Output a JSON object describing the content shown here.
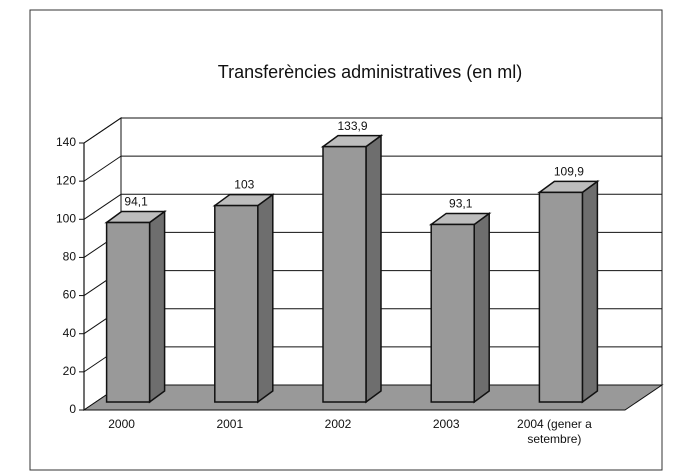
{
  "chart_data": {
    "type": "bar3d",
    "title": "Transferències administratives (en ml)",
    "categories": [
      "2000",
      "2001",
      "2002",
      "2003",
      "2004 (gener a setembre)"
    ],
    "values": [
      94.1,
      103,
      133.9,
      93.1,
      109.9
    ],
    "value_labels": [
      "94,1",
      "103",
      "133,9",
      "93,1",
      "109,9"
    ],
    "color": "#999999",
    "ylim": [
      0,
      140
    ],
    "yticks": [
      0,
      20,
      40,
      60,
      80,
      100,
      120,
      140
    ],
    "grid": true
  }
}
